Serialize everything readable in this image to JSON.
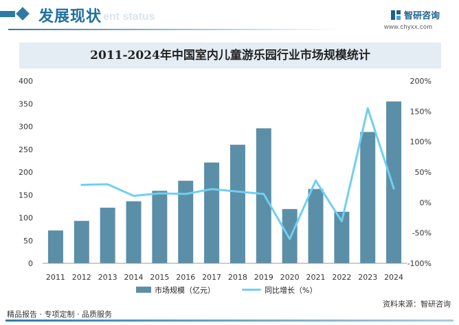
{
  "header": {
    "section_title": "发展现状",
    "section_subtitle": "ent status",
    "brand_name": "智研咨询",
    "brand_url": "www.chyxx.com"
  },
  "chart_data": {
    "type": "bar",
    "title": "2011-2024年中国室内儿童游乐园行业市场规模统计",
    "categories": [
      "2011",
      "2012",
      "2013",
      "2014",
      "2015",
      "2016",
      "2017",
      "2018",
      "2019",
      "2020",
      "2021",
      "2022",
      "2023",
      "2024"
    ],
    "series": [
      {
        "name": "市场规模（亿元）",
        "type": "bar",
        "axis": "left",
        "color": "#5b8fa8",
        "values": [
          72,
          93,
          122,
          136,
          159,
          181,
          221,
          260,
          296,
          119,
          163,
          113,
          288,
          355
        ]
      },
      {
        "name": "同比增长（%）",
        "type": "line",
        "axis": "right",
        "color": "#6fcff0",
        "values": [
          null,
          29,
          30,
          11,
          15,
          14,
          22,
          18,
          14,
          -60,
          36,
          -31,
          155,
          23
        ]
      }
    ],
    "y_left": {
      "min": 0,
      "max": 400,
      "ticks": [
        "0",
        "50",
        "100",
        "150",
        "200",
        "250",
        "300",
        "350",
        "400"
      ]
    },
    "y_right": {
      "min": -100,
      "max": 200,
      "ticks": [
        "-100%",
        "-50%",
        "0%",
        "50%",
        "100%",
        "150%",
        "200%"
      ]
    },
    "grid": false,
    "legend_position": "bottom"
  },
  "footer": {
    "left_text": "精品报告 · 专项定制 · 品质服务",
    "source_text": "资料来源：智研咨询"
  }
}
